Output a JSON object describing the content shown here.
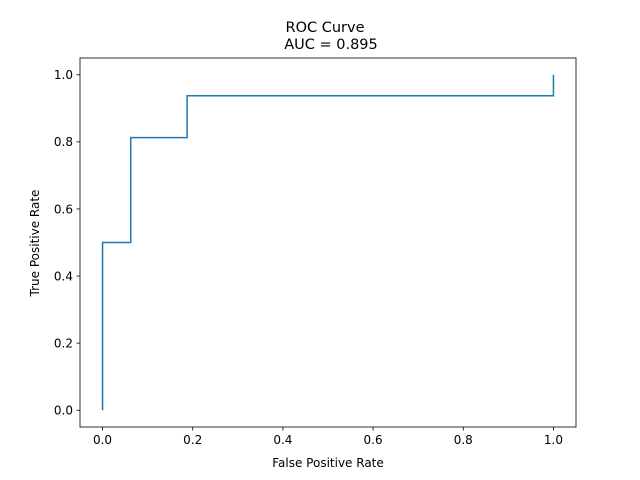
{
  "chart_data": {
    "type": "line",
    "title": "ROC Curve",
    "subtitle": "AUC = 0.895",
    "xlabel": "False Positive Rate",
    "ylabel": "True Positive Rate",
    "xlim": [
      -0.05,
      1.05
    ],
    "ylim": [
      -0.05,
      1.05
    ],
    "grid": false,
    "xticks": [
      0.0,
      0.2,
      0.4,
      0.6,
      0.8,
      1.0
    ],
    "yticks": [
      0.0,
      0.2,
      0.4,
      0.6,
      0.8,
      1.0
    ],
    "xtick_labels": [
      "0.0",
      "0.2",
      "0.4",
      "0.6",
      "0.8",
      "1.0"
    ],
    "ytick_labels": [
      "0.0",
      "0.2",
      "0.4",
      "0.6",
      "0.8",
      "1.0"
    ],
    "series": [
      {
        "color": "#1f77b4",
        "x": [
          0.0,
          0.0,
          0.0625,
          0.0625,
          0.1875,
          0.1875,
          1.0,
          1.0
        ],
        "y": [
          0.0,
          0.5,
          0.5,
          0.8125,
          0.8125,
          0.9375,
          0.9375,
          1.0
        ]
      }
    ]
  }
}
